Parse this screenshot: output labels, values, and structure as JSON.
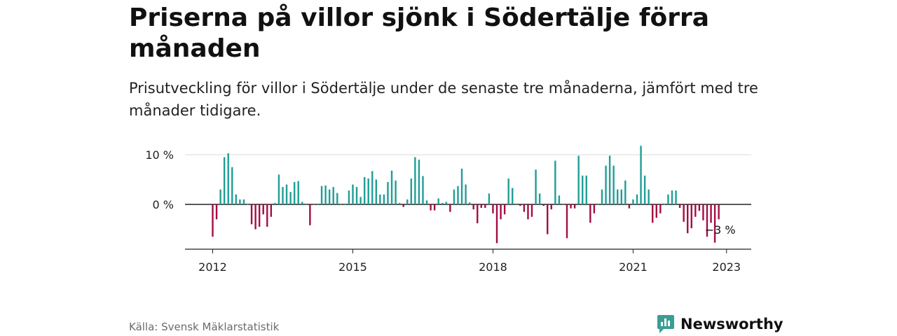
{
  "title": "Priserna på villor sjönk i Södertälje förra månaden",
  "subtitle": "Prisutveckling för villor i Södertälje under de senaste tre månaderna, jämfört med tre månader tidigare.",
  "source": "Källa: Svensk Mäklarstatistik",
  "brand": {
    "name": "Newsworthy",
    "icon": "newsworthy-logo-icon",
    "color": "#3a9e95"
  },
  "colors": {
    "positive": "#1f9e95",
    "negative": "#a30d45",
    "grid": "#d9d9d9",
    "axis": "#222222"
  },
  "chart_data": {
    "type": "bar",
    "title": "Priserna på villor sjönk i Södertälje förra månaden",
    "subtitle": "Prisutveckling för villor i Södertälje under de senaste tre månaderna, jämfört med tre månader tidigare.",
    "xlabel": "",
    "ylabel": "",
    "y_unit": "%",
    "ylim": [
      -9,
      11
    ],
    "y_ticks": [
      {
        "value": 10,
        "label": "10 %"
      },
      {
        "value": 0,
        "label": "0 %"
      }
    ],
    "x_ticks": [
      "2012",
      "2015",
      "2018",
      "2021",
      "2023"
    ],
    "grid": true,
    "start_period": "2012-01",
    "frequency": "monthly",
    "annotation": {
      "text": "−3 %",
      "target": "last"
    },
    "values": [
      -6.5,
      -3,
      3,
      9.5,
      10.3,
      7.5,
      2,
      1,
      1,
      0,
      -4,
      -5,
      -4.5,
      -2,
      -4.5,
      -2.5,
      0.3,
      6,
      3.5,
      4,
      2.5,
      4.5,
      4.7,
      0.5,
      0,
      -4.2,
      0,
      0,
      3.7,
      3.8,
      3,
      3.5,
      2.3,
      0,
      0,
      2.8,
      4,
      3.5,
      1.5,
      5.5,
      5.2,
      6.7,
      5,
      2,
      2,
      4.5,
      6.8,
      4.8,
      0.3,
      -0.5,
      1,
      5.2,
      9.5,
      9,
      5.7,
      0.8,
      -1.2,
      -1.2,
      1.2,
      0.3,
      0.5,
      -1.5,
      3,
      3.7,
      7.2,
      4,
      0.4,
      -1,
      -3.8,
      -0.7,
      -0.7,
      2.2,
      -1.8,
      -7.8,
      -3,
      -2,
      5.2,
      3.3,
      0,
      -0.3,
      -1.5,
      -3,
      -2.5,
      7,
      2.2,
      -0.3,
      -6,
      -1,
      8.8,
      1.8,
      0,
      -6.8,
      -0.8,
      -0.8,
      9.8,
      5.8,
      5.8,
      -3.7,
      -1.8,
      0,
      3,
      7.8,
      9.8,
      7.8,
      3,
      3,
      4.8,
      -0.8,
      1,
      2,
      11.8,
      5.8,
      3,
      -3.7,
      -2.7,
      -1.8,
      0,
      2,
      2.8,
      2.8,
      -0.7,
      -3.5,
      -5.8,
      -4.8,
      -2.5,
      -1.3,
      -3.2,
      -6.5,
      -3.7,
      -7.7,
      -3
    ]
  }
}
